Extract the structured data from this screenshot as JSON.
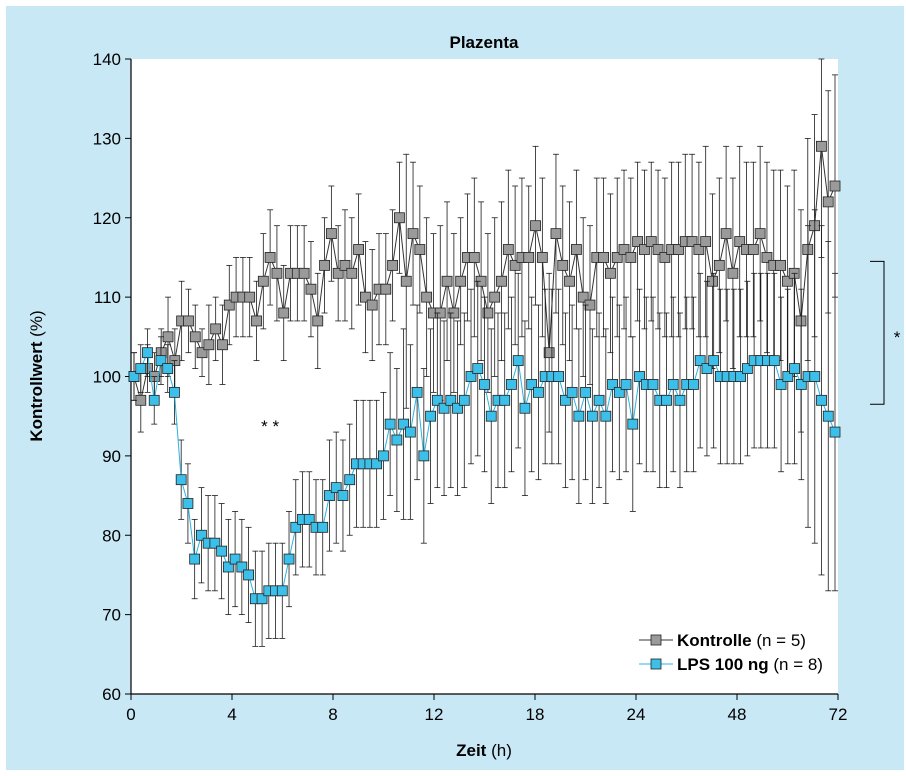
{
  "chart_data": {
    "type": "line",
    "title": "Plazenta",
    "xlabel": "Zeit",
    "xlabel_unit": "(h)",
    "ylabel": "Kontrollwert",
    "ylabel_unit": "(%)",
    "ylim": [
      60,
      140
    ],
    "yticks": [
      60,
      70,
      80,
      90,
      100,
      110,
      120,
      130,
      140
    ],
    "xticks": [
      "0",
      "4",
      "8",
      "12",
      "18",
      "24",
      "48",
      "72"
    ],
    "grid": false,
    "legend_position": "bottom-right",
    "annotations": [
      {
        "text": "* *",
        "x_index": 20,
        "y": 93
      },
      {
        "text": "*",
        "x_index": 125,
        "y": 105
      }
    ],
    "series": [
      {
        "name": "Kontrolle",
        "n_label": "(n = 5)",
        "color": "#9a9a9a",
        "values": [
          100,
          97,
          101,
          100,
          103,
          105,
          102,
          107,
          107,
          105,
          103,
          104,
          106,
          104,
          109,
          110,
          110,
          110,
          107,
          112,
          115,
          113,
          108,
          113,
          113,
          113,
          111,
          107,
          114,
          118,
          113,
          114,
          113,
          116,
          110,
          109,
          111,
          111,
          114,
          120,
          112,
          118,
          116,
          110,
          108,
          108,
          112,
          108,
          112,
          115,
          115,
          112,
          108,
          110,
          112,
          116,
          114,
          115,
          115,
          119,
          115,
          103,
          118,
          114,
          112,
          116,
          110,
          109,
          115,
          115,
          113,
          115,
          116,
          115,
          117,
          116,
          117,
          116,
          115,
          116,
          116,
          117,
          117,
          116,
          117,
          112,
          114,
          118,
          113,
          117,
          116,
          116,
          118,
          115,
          114,
          114,
          112,
          113,
          107,
          116,
          119,
          129,
          122,
          124
        ],
        "errors": [
          3,
          4,
          3,
          3,
          3,
          5,
          4,
          5,
          4,
          4,
          3,
          5,
          4,
          5,
          5,
          5,
          5,
          5,
          5,
          6,
          6,
          6,
          6,
          6,
          6,
          6,
          6,
          6,
          6,
          6,
          6,
          7,
          7,
          7,
          7,
          7,
          7,
          7,
          7,
          7,
          16,
          9,
          8,
          10,
          10,
          11,
          10,
          10,
          8,
          8,
          10,
          10,
          10,
          10,
          10,
          10,
          10,
          10,
          9,
          10,
          10,
          10,
          10,
          10,
          10,
          10,
          10,
          10,
          10,
          10,
          10,
          10,
          10,
          10,
          10,
          10,
          10,
          10,
          10,
          11,
          11,
          11,
          11,
          11,
          12,
          11,
          11,
          11,
          12,
          12,
          11,
          11,
          11,
          12,
          12,
          12,
          12,
          13,
          14,
          14,
          14,
          14,
          14,
          14
        ],
        "marker_color": "#9a9a9a"
      },
      {
        "name": "LPS 100 ng",
        "n_label": "(n = 8)",
        "color": "#2ab3e0",
        "values": [
          100,
          101,
          103,
          97,
          102,
          101,
          98,
          87,
          84,
          77,
          80,
          79,
          79,
          78,
          76,
          77,
          76,
          75,
          72,
          72,
          73,
          73,
          73,
          77,
          81,
          82,
          82,
          81,
          81,
          85,
          86,
          85,
          87,
          89,
          89,
          89,
          89,
          90,
          94,
          92,
          94,
          93,
          98,
          90,
          95,
          97,
          96,
          97,
          96,
          97,
          100,
          101,
          99,
          95,
          97,
          97,
          99,
          102,
          96,
          99,
          98,
          100,
          100,
          100,
          97,
          98,
          95,
          98,
          95,
          97,
          95,
          99,
          98,
          99,
          94,
          100,
          99,
          99,
          97,
          97,
          99,
          97,
          99,
          99,
          102,
          101,
          102,
          100,
          100,
          100,
          100,
          101,
          102,
          102,
          102,
          102,
          99,
          100,
          101,
          99,
          100,
          100,
          97,
          95,
          93
        ],
        "errors": [
          3,
          3,
          3,
          3,
          3,
          3,
          4,
          5,
          5,
          5,
          6,
          6,
          6,
          6,
          6,
          6,
          6,
          6,
          6,
          6,
          6,
          6,
          6,
          6,
          6,
          6,
          6,
          6,
          6,
          7,
          7,
          7,
          7,
          8,
          8,
          8,
          8,
          8,
          9,
          9,
          12,
          11,
          11,
          11,
          11,
          11,
          11,
          11,
          11,
          11,
          11,
          11,
          11,
          11,
          11,
          11,
          11,
          11,
          11,
          11,
          11,
          11,
          11,
          11,
          11,
          11,
          11,
          11,
          11,
          11,
          11,
          11,
          11,
          11,
          11,
          11,
          11,
          11,
          11,
          11,
          11,
          11,
          11,
          11,
          11,
          11,
          11,
          11,
          11,
          11,
          11,
          11,
          11,
          11,
          11,
          11,
          11,
          11,
          12,
          12,
          19,
          21,
          22,
          22,
          20
        ],
        "marker_color": "#3cc0ea"
      }
    ]
  }
}
